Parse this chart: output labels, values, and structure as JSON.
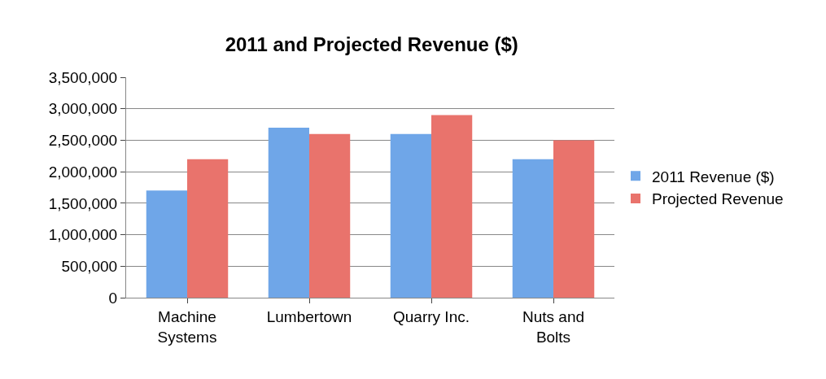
{
  "chart_data": {
    "type": "bar",
    "title": "2011 and Projected Revenue ($)",
    "categories": [
      "Machine Systems",
      "Lumbertown",
      "Quarry Inc.",
      "Nuts and Bolts"
    ],
    "series": [
      {
        "name": "2011 Revenue ($)",
        "color": "#6fa6e8",
        "values": [
          1700000,
          2700000,
          2600000,
          2200000
        ]
      },
      {
        "name": "Projected Revenue",
        "color": "#e9736c",
        "values": [
          2200000,
          2600000,
          2900000,
          2500000
        ]
      }
    ],
    "ylim": [
      0,
      3500000
    ],
    "yticks": [
      {
        "value": 0,
        "label": "0"
      },
      {
        "value": 500000,
        "label": "500,000"
      },
      {
        "value": 1000000,
        "label": "1,000,000"
      },
      {
        "value": 1500000,
        "label": "1,500,000"
      },
      {
        "value": 2000000,
        "label": "2,000,000"
      },
      {
        "value": 2500000,
        "label": "2,500,000"
      },
      {
        "value": 3000000,
        "label": "3,000,000"
      },
      {
        "value": 3500000,
        "label": "3,500,000"
      }
    ],
    "grid": "y",
    "legend": "right"
  }
}
